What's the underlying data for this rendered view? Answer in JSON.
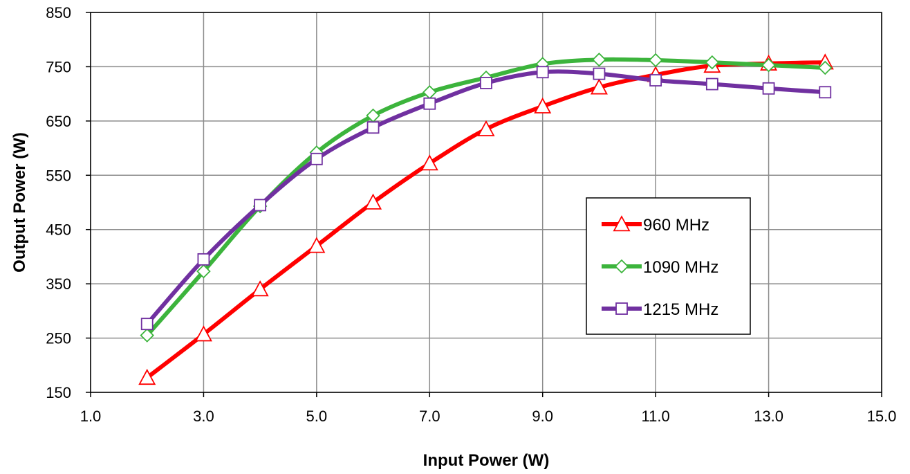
{
  "chart_data": {
    "type": "line",
    "title": "",
    "xlabel": "Input Power (W)",
    "ylabel": "Output Power (W)",
    "xlim": [
      1.0,
      15.0
    ],
    "ylim": [
      150,
      850
    ],
    "x_ticks": [
      "1.0",
      "3.0",
      "5.0",
      "7.0",
      "9.0",
      "11.0",
      "13.0",
      "15.0"
    ],
    "y_ticks": [
      "150",
      "250",
      "350",
      "450",
      "550",
      "650",
      "750",
      "850"
    ],
    "grid": true,
    "legend_position": "right-middle",
    "series": [
      {
        "name": "960 MHz",
        "color": "#ff0000",
        "marker": "triangle",
        "x": [
          2,
          3,
          4,
          5,
          6,
          7,
          8,
          9,
          10,
          11,
          12,
          13,
          14
        ],
        "y": [
          177,
          257,
          340,
          420,
          500,
          572,
          635,
          677,
          712,
          735,
          752,
          756,
          758
        ]
      },
      {
        "name": "1090 MHz",
        "color": "#3cb43c",
        "marker": "diamond",
        "x": [
          2,
          3,
          4,
          5,
          6,
          7,
          8,
          9,
          10,
          11,
          12,
          13,
          14
        ],
        "y": [
          255,
          373,
          493,
          592,
          660,
          703,
          730,
          755,
          763,
          762,
          758,
          753,
          748
        ]
      },
      {
        "name": "1215 MHz",
        "color": "#7030a0",
        "marker": "square",
        "x": [
          2,
          3,
          4,
          5,
          6,
          7,
          8,
          9,
          10,
          11,
          12,
          13,
          14
        ],
        "y": [
          276,
          395,
          495,
          580,
          638,
          682,
          720,
          740,
          737,
          725,
          718,
          710,
          703
        ]
      }
    ]
  }
}
